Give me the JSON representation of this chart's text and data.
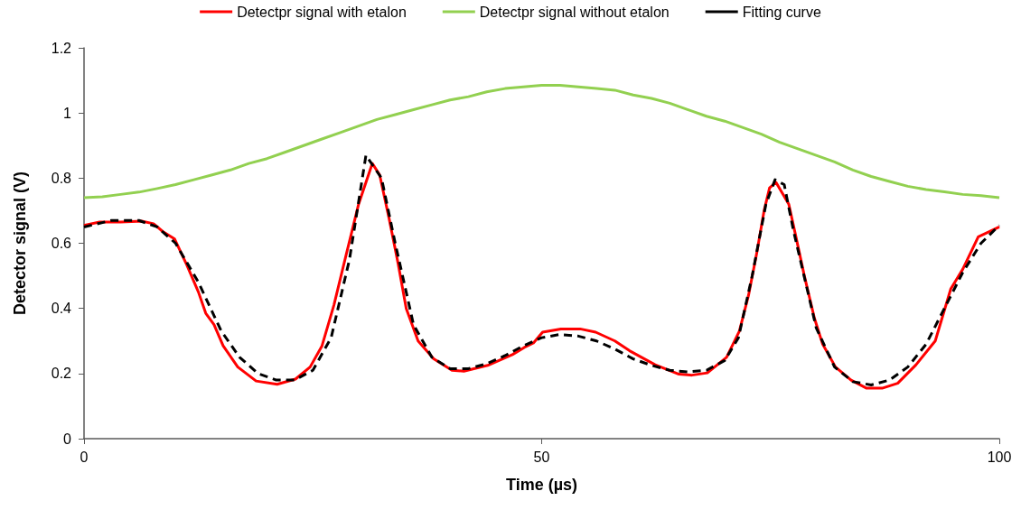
{
  "chart_data": {
    "type": "line",
    "xlabel": "Time (µs)",
    "ylabel": "Detector signal (V)",
    "xlim": [
      0,
      100
    ],
    "xticks": [
      0,
      50,
      100
    ],
    "ylim": [
      0,
      1.2
    ],
    "yticks": [
      0,
      0.2,
      0.4,
      0.6,
      0.8,
      1,
      1.2
    ],
    "grid": false,
    "legend": "top",
    "marker": "none",
    "series": [
      {
        "name": "Detectpr signal with etalon",
        "color": "#ff0000",
        "line_style": "solid",
        "x": [
          0,
          1.7,
          4,
          6.3,
          7.6,
          8.6,
          9.9,
          11.2,
          12.5,
          13.3,
          14.2,
          15.2,
          16.8,
          18.8,
          21.1,
          23.1,
          24.7,
          26,
          27.3,
          28.6,
          30,
          31.5,
          32.3,
          33.3,
          34.3,
          35.2,
          36.5,
          38.2,
          40.2,
          41.5,
          44.1,
          46.8,
          48.1,
          49.1,
          50.1,
          52.1,
          54.2,
          55.9,
          58,
          59.6,
          62.4,
          65,
          66.4,
          68.1,
          70.2,
          71.6,
          72.6,
          73.5,
          74.3,
          74.9,
          75.6,
          77,
          77.7,
          78.7,
          79.8,
          80.7,
          82.1,
          83.8,
          85.5,
          87.2,
          88.9,
          90.9,
          93,
          94.7,
          96,
          97.7,
          100
        ],
        "values": [
          0.655,
          0.665,
          0.665,
          0.668,
          0.66,
          0.636,
          0.613,
          0.535,
          0.45,
          0.385,
          0.35,
          0.285,
          0.22,
          0.177,
          0.167,
          0.183,
          0.22,
          0.285,
          0.41,
          0.56,
          0.72,
          0.845,
          0.81,
          0.68,
          0.54,
          0.4,
          0.3,
          0.245,
          0.21,
          0.207,
          0.225,
          0.258,
          0.28,
          0.294,
          0.327,
          0.337,
          0.337,
          0.327,
          0.3,
          0.27,
          0.227,
          0.198,
          0.195,
          0.202,
          0.25,
          0.33,
          0.44,
          0.57,
          0.7,
          0.77,
          0.787,
          0.72,
          0.63,
          0.5,
          0.37,
          0.29,
          0.22,
          0.18,
          0.155,
          0.155,
          0.17,
          0.227,
          0.3,
          0.46,
          0.52,
          0.62,
          0.65
        ]
      },
      {
        "name": "Detectpr signal without etalon",
        "color": "#92d050",
        "line_style": "solid",
        "x": [
          0,
          2,
          4,
          6,
          8,
          10,
          12,
          14,
          16,
          18,
          20,
          22,
          24,
          26,
          28,
          30,
          32,
          34,
          36,
          38,
          40,
          42,
          44,
          46,
          48,
          50,
          52,
          54,
          56,
          58,
          60,
          62,
          64,
          66,
          68,
          70,
          72,
          74,
          76,
          78,
          80,
          82,
          84,
          86,
          88,
          90,
          92,
          94,
          96,
          98,
          100
        ],
        "values": [
          0.74,
          0.743,
          0.75,
          0.757,
          0.768,
          0.78,
          0.795,
          0.81,
          0.825,
          0.845,
          0.86,
          0.88,
          0.9,
          0.92,
          0.94,
          0.96,
          0.98,
          0.995,
          1.01,
          1.025,
          1.04,
          1.05,
          1.065,
          1.075,
          1.08,
          1.085,
          1.085,
          1.08,
          1.075,
          1.07,
          1.055,
          1.045,
          1.03,
          1.01,
          0.99,
          0.975,
          0.955,
          0.935,
          0.91,
          0.89,
          0.87,
          0.85,
          0.825,
          0.805,
          0.79,
          0.775,
          0.765,
          0.758,
          0.75,
          0.746,
          0.74
        ]
      },
      {
        "name": "Fitting curve",
        "color": "#000000",
        "line_style": "dashed",
        "x": [
          0,
          3,
          6,
          8,
          10,
          12.5,
          15,
          17,
          19,
          21,
          23,
          25,
          27,
          29,
          30.8,
          32.5,
          34,
          36,
          38,
          40,
          42,
          44,
          46,
          48,
          50,
          52,
          54,
          56,
          58,
          60,
          62,
          64,
          66,
          68,
          70,
          71.5,
          73,
          74.5,
          75.5,
          76.5,
          77.5,
          78.5,
          80,
          82,
          84,
          86,
          88,
          90,
          92,
          94,
          96,
          98,
          100
        ],
        "values": [
          0.65,
          0.67,
          0.67,
          0.65,
          0.6,
          0.48,
          0.33,
          0.25,
          0.2,
          0.18,
          0.18,
          0.21,
          0.31,
          0.55,
          0.87,
          0.8,
          0.6,
          0.35,
          0.25,
          0.215,
          0.215,
          0.23,
          0.255,
          0.285,
          0.31,
          0.32,
          0.315,
          0.3,
          0.275,
          0.245,
          0.225,
          0.21,
          0.205,
          0.21,
          0.24,
          0.31,
          0.5,
          0.72,
          0.795,
          0.78,
          0.64,
          0.52,
          0.34,
          0.22,
          0.175,
          0.165,
          0.18,
          0.22,
          0.29,
          0.4,
          0.51,
          0.6,
          0.655
        ]
      }
    ]
  }
}
